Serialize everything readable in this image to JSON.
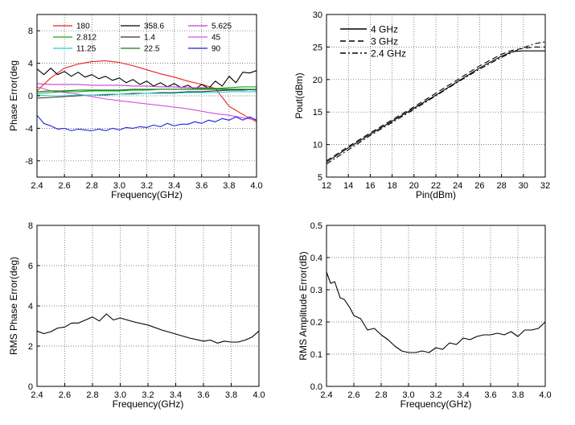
{
  "chart_data": [
    {
      "id": "phase",
      "type": "line",
      "title": "",
      "xlabel": "Frequency(GHz)",
      "ylabel": "Phase Error(deg",
      "xlim": [
        2.4,
        4.0
      ],
      "ylim": [
        -10,
        10
      ],
      "xticks": [
        2.4,
        2.6,
        2.8,
        3.0,
        3.2,
        3.4,
        3.6,
        3.8,
        4.0
      ],
      "xtick_labels": [
        "2.4",
        "2.6",
        "2.8",
        "3.0",
        "3.2",
        "3.4",
        "3.6",
        "3.8",
        "4.0"
      ],
      "yticks": [
        -8,
        -4,
        0,
        4,
        8
      ],
      "ytick_labels": [
        "-8",
        "-4",
        "0",
        "4",
        "8"
      ],
      "grid": true,
      "series": [
        {
          "name": "180",
          "color": "#e8231f",
          "x": [
            2.4,
            2.5,
            2.6,
            2.7,
            2.8,
            2.9,
            3.0,
            3.1,
            3.2,
            3.3,
            3.4,
            3.5,
            3.6,
            3.7,
            3.8,
            3.9,
            4.0
          ],
          "y": [
            0.6,
            2.2,
            3.4,
            3.9,
            4.2,
            4.3,
            4.1,
            3.7,
            3.2,
            2.7,
            2.3,
            1.8,
            1.4,
            0.9,
            -1.3,
            -2.3,
            -3.2
          ]
        },
        {
          "name": "358.6",
          "color": "#000000",
          "x": [
            2.4,
            2.45,
            2.5,
            2.55,
            2.6,
            2.65,
            2.7,
            2.75,
            2.8,
            2.85,
            2.9,
            2.95,
            3.0,
            3.05,
            3.1,
            3.15,
            3.2,
            3.25,
            3.3,
            3.35,
            3.4,
            3.45,
            3.5,
            3.55,
            3.6,
            3.65,
            3.7,
            3.75,
            3.8,
            3.85,
            3.9,
            3.95,
            4.0
          ],
          "y": [
            3.3,
            2.6,
            3.4,
            2.6,
            3.0,
            2.4,
            2.9,
            2.3,
            2.6,
            2.1,
            2.4,
            1.9,
            2.2,
            1.6,
            2.0,
            1.4,
            1.8,
            1.2,
            1.6,
            1.1,
            1.5,
            1.0,
            1.3,
            0.8,
            1.4,
            0.9,
            1.8,
            1.2,
            2.4,
            1.6,
            2.9,
            2.8,
            3.1
          ]
        },
        {
          "name": "5.625",
          "color": "#c43fd6",
          "x": [
            2.4,
            2.5,
            2.6,
            2.7,
            2.8,
            2.9,
            3.0,
            3.1,
            3.2,
            3.3,
            3.4,
            3.5,
            3.6,
            3.7,
            3.8,
            3.9,
            4.0
          ],
          "y": [
            1.5,
            1.4,
            1.4,
            1.4,
            1.3,
            1.3,
            1.3,
            1.2,
            1.2,
            1.1,
            1.1,
            1.0,
            1.0,
            0.9,
            0.8,
            0.8,
            0.7
          ]
        },
        {
          "name": "2.812",
          "color": "#19a319",
          "x": [
            2.4,
            2.5,
            2.6,
            2.7,
            2.8,
            2.9,
            3.0,
            3.1,
            3.2,
            3.3,
            3.4,
            3.5,
            3.6,
            3.7,
            3.8,
            3.9,
            4.0
          ],
          "y": [
            0.3,
            0.4,
            0.5,
            0.5,
            0.6,
            0.6,
            0.6,
            0.7,
            0.7,
            0.8,
            0.8,
            0.8,
            0.9,
            0.9,
            1.0,
            1.1,
            1.1
          ]
        },
        {
          "name": "1.4",
          "color": "#333333",
          "x": [
            2.4,
            2.5,
            2.6,
            2.7,
            2.8,
            2.9,
            3.0,
            3.1,
            3.2,
            3.3,
            3.4,
            3.5,
            3.6,
            3.7,
            3.8,
            3.9,
            4.0
          ],
          "y": [
            -0.3,
            -0.2,
            -0.1,
            0.0,
            0.1,
            0.1,
            0.2,
            0.3,
            0.3,
            0.4,
            0.4,
            0.5,
            0.5,
            0.6,
            0.7,
            0.7,
            0.8
          ]
        },
        {
          "name": "45",
          "color": "#d64fd6",
          "x": [
            2.4,
            2.5,
            2.6,
            2.7,
            2.8,
            2.9,
            3.0,
            3.1,
            3.2,
            3.3,
            3.4,
            3.5,
            3.6,
            3.7,
            3.8,
            3.9,
            4.0
          ],
          "y": [
            1.1,
            0.6,
            0.4,
            0.2,
            -0.1,
            -0.4,
            -0.6,
            -0.8,
            -1.0,
            -1.2,
            -1.4,
            -1.6,
            -1.9,
            -2.2,
            -2.4,
            -2.7,
            -3.0
          ]
        },
        {
          "name": "11.25",
          "color": "#19d4d4",
          "x": [
            2.4,
            2.5,
            2.6,
            2.7,
            2.8,
            2.9,
            3.0,
            3.1,
            3.2,
            3.3,
            3.4,
            3.5,
            3.6,
            3.7,
            3.8,
            3.9,
            4.0
          ],
          "y": [
            0.1,
            0.0,
            0.0,
            0.1,
            0.1,
            0.2,
            0.2,
            0.2,
            0.3,
            0.3,
            0.3,
            0.4,
            0.4,
            0.4,
            0.5,
            0.5,
            0.5
          ]
        },
        {
          "name": "22.5",
          "color": "#0f7d0f",
          "x": [
            2.4,
            2.5,
            2.6,
            2.7,
            2.8,
            2.9,
            3.0,
            3.1,
            3.2,
            3.3,
            3.4,
            3.5,
            3.6,
            3.7,
            3.8,
            3.9,
            4.0
          ],
          "y": [
            0.5,
            0.6,
            0.6,
            0.7,
            0.7,
            0.7,
            0.7,
            0.8,
            0.8,
            0.8,
            0.8,
            0.8,
            0.8,
            0.8,
            0.8,
            0.8,
            0.8
          ]
        },
        {
          "name": "90",
          "color": "#1f1fe0",
          "x": [
            2.4,
            2.45,
            2.5,
            2.55,
            2.6,
            2.65,
            2.7,
            2.75,
            2.8,
            2.85,
            2.9,
            2.95,
            3.0,
            3.05,
            3.1,
            3.15,
            3.2,
            3.25,
            3.3,
            3.35,
            3.4,
            3.45,
            3.5,
            3.55,
            3.6,
            3.65,
            3.7,
            3.75,
            3.8,
            3.85,
            3.9,
            3.95,
            4.0
          ],
          "y": [
            -2.4,
            -3.4,
            -3.7,
            -4.1,
            -4.0,
            -4.3,
            -4.1,
            -4.2,
            -4.3,
            -4.1,
            -4.3,
            -4.0,
            -4.2,
            -3.9,
            -4.0,
            -3.8,
            -3.9,
            -3.6,
            -3.8,
            -3.4,
            -3.7,
            -3.5,
            -3.5,
            -3.2,
            -3.4,
            -3.0,
            -3.2,
            -2.8,
            -3.0,
            -2.6,
            -3.0,
            -2.6,
            -3.0
          ]
        }
      ],
      "legend": {
        "placement": "top",
        "columns": 3
      }
    },
    {
      "id": "pout",
      "type": "line",
      "title": "",
      "xlabel": "Pin(dBm)",
      "ylabel": "Pout(dBm)",
      "xlim": [
        12,
        32
      ],
      "ylim": [
        5,
        30
      ],
      "xticks": [
        12,
        14,
        16,
        18,
        20,
        22,
        24,
        26,
        28,
        30,
        32
      ],
      "xtick_labels": [
        "12",
        "14",
        "16",
        "18",
        "20",
        "22",
        "24",
        "26",
        "28",
        "30",
        "32"
      ],
      "yticks": [
        5,
        10,
        15,
        20,
        25,
        30
      ],
      "ytick_labels": [
        "5",
        "10",
        "15",
        "20",
        "25",
        "30"
      ],
      "grid": true,
      "series": [
        {
          "name": "4 GHz",
          "color": "#000000",
          "dash": "",
          "x": [
            12,
            14,
            16,
            18,
            20,
            22,
            24,
            26,
            28,
            29,
            30,
            31,
            32
          ],
          "y": [
            7.3,
            9.5,
            11.6,
            13.6,
            15.6,
            17.6,
            19.7,
            21.8,
            23.6,
            24.3,
            24.4,
            24.4,
            24.4
          ]
        },
        {
          "name": "3 GHz",
          "color": "#000000",
          "dash": "7,4",
          "x": [
            12,
            14,
            16,
            18,
            20,
            22,
            24,
            26,
            28,
            29,
            30,
            31,
            32
          ],
          "y": [
            7.5,
            9.7,
            11.8,
            13.8,
            15.8,
            17.9,
            20.0,
            22.1,
            23.9,
            24.5,
            24.8,
            25.0,
            25.0
          ]
        },
        {
          "name": "2.4 GHz",
          "color": "#000000",
          "dash": "7,3,2,3",
          "x": [
            12,
            14,
            16,
            18,
            20,
            22,
            24,
            26,
            28,
            29,
            30,
            31,
            32
          ],
          "y": [
            7.0,
            9.2,
            11.4,
            13.4,
            15.4,
            17.5,
            19.6,
            21.6,
            23.4,
            24.2,
            24.9,
            25.5,
            25.8
          ]
        }
      ],
      "legend": {
        "placement": "top-left",
        "columns": 1
      }
    },
    {
      "id": "rmsphase",
      "type": "line",
      "title": "",
      "xlabel": "Frequency(GHz)",
      "ylabel": "RMS Phase Error(deg)",
      "xlim": [
        2.4,
        4.0
      ],
      "ylim": [
        0,
        8
      ],
      "xticks": [
        2.4,
        2.6,
        2.8,
        3.0,
        3.2,
        3.4,
        3.6,
        3.8,
        4.0
      ],
      "xtick_labels": [
        "2.4",
        "2.6",
        "2.8",
        "3.0",
        "3.2",
        "3.4",
        "3.6",
        "3.8",
        "4.0"
      ],
      "yticks": [
        0,
        2,
        4,
        6,
        8
      ],
      "ytick_labels": [
        "0",
        "2",
        "4",
        "6",
        "8"
      ],
      "grid": true,
      "series": [
        {
          "name": "RMS Phase Error",
          "color": "#000000",
          "x": [
            2.4,
            2.45,
            2.5,
            2.55,
            2.6,
            2.65,
            2.7,
            2.75,
            2.8,
            2.85,
            2.9,
            2.95,
            3.0,
            3.1,
            3.2,
            3.3,
            3.4,
            3.5,
            3.6,
            3.65,
            3.7,
            3.75,
            3.8,
            3.85,
            3.9,
            3.95,
            4.0
          ],
          "y": [
            2.75,
            2.62,
            2.72,
            2.9,
            2.95,
            3.15,
            3.15,
            3.3,
            3.45,
            3.25,
            3.6,
            3.3,
            3.4,
            3.2,
            3.05,
            2.8,
            2.6,
            2.4,
            2.25,
            2.3,
            2.15,
            2.25,
            2.2,
            2.2,
            2.3,
            2.45,
            2.75
          ]
        }
      ]
    },
    {
      "id": "rmsamp",
      "type": "line",
      "title": "",
      "xlabel": "Frequency(GHz)",
      "ylabel": "RMS Amplitude Error(dB)",
      "xlim": [
        2.4,
        4.0
      ],
      "ylim": [
        0,
        0.5
      ],
      "xticks": [
        2.4,
        2.6,
        2.8,
        3.0,
        3.2,
        3.4,
        3.6,
        3.8,
        4.0
      ],
      "xtick_labels": [
        "2.4",
        "2.6",
        "2.8",
        "3.0",
        "3.2",
        "3.4",
        "3.6",
        "3.8",
        "4.0"
      ],
      "yticks": [
        0,
        0.1,
        0.2,
        0.3,
        0.4,
        0.5
      ],
      "ytick_labels": [
        "0.0",
        "0.1",
        "0.2",
        "0.3",
        "0.4",
        "0.5"
      ],
      "grid": true,
      "series": [
        {
          "name": "RMS Amplitude Error",
          "color": "#000000",
          "x": [
            2.4,
            2.43,
            2.46,
            2.5,
            2.53,
            2.57,
            2.6,
            2.65,
            2.7,
            2.75,
            2.8,
            2.85,
            2.9,
            2.95,
            3.0,
            3.05,
            3.1,
            3.15,
            3.2,
            3.25,
            3.3,
            3.35,
            3.4,
            3.45,
            3.5,
            3.55,
            3.6,
            3.65,
            3.7,
            3.75,
            3.8,
            3.85,
            3.9,
            3.95,
            4.0
          ],
          "y": [
            0.355,
            0.32,
            0.325,
            0.275,
            0.27,
            0.245,
            0.22,
            0.21,
            0.175,
            0.18,
            0.16,
            0.145,
            0.125,
            0.11,
            0.105,
            0.105,
            0.11,
            0.105,
            0.12,
            0.115,
            0.135,
            0.13,
            0.15,
            0.145,
            0.155,
            0.16,
            0.16,
            0.165,
            0.16,
            0.17,
            0.155,
            0.175,
            0.175,
            0.18,
            0.2
          ]
        }
      ]
    }
  ]
}
